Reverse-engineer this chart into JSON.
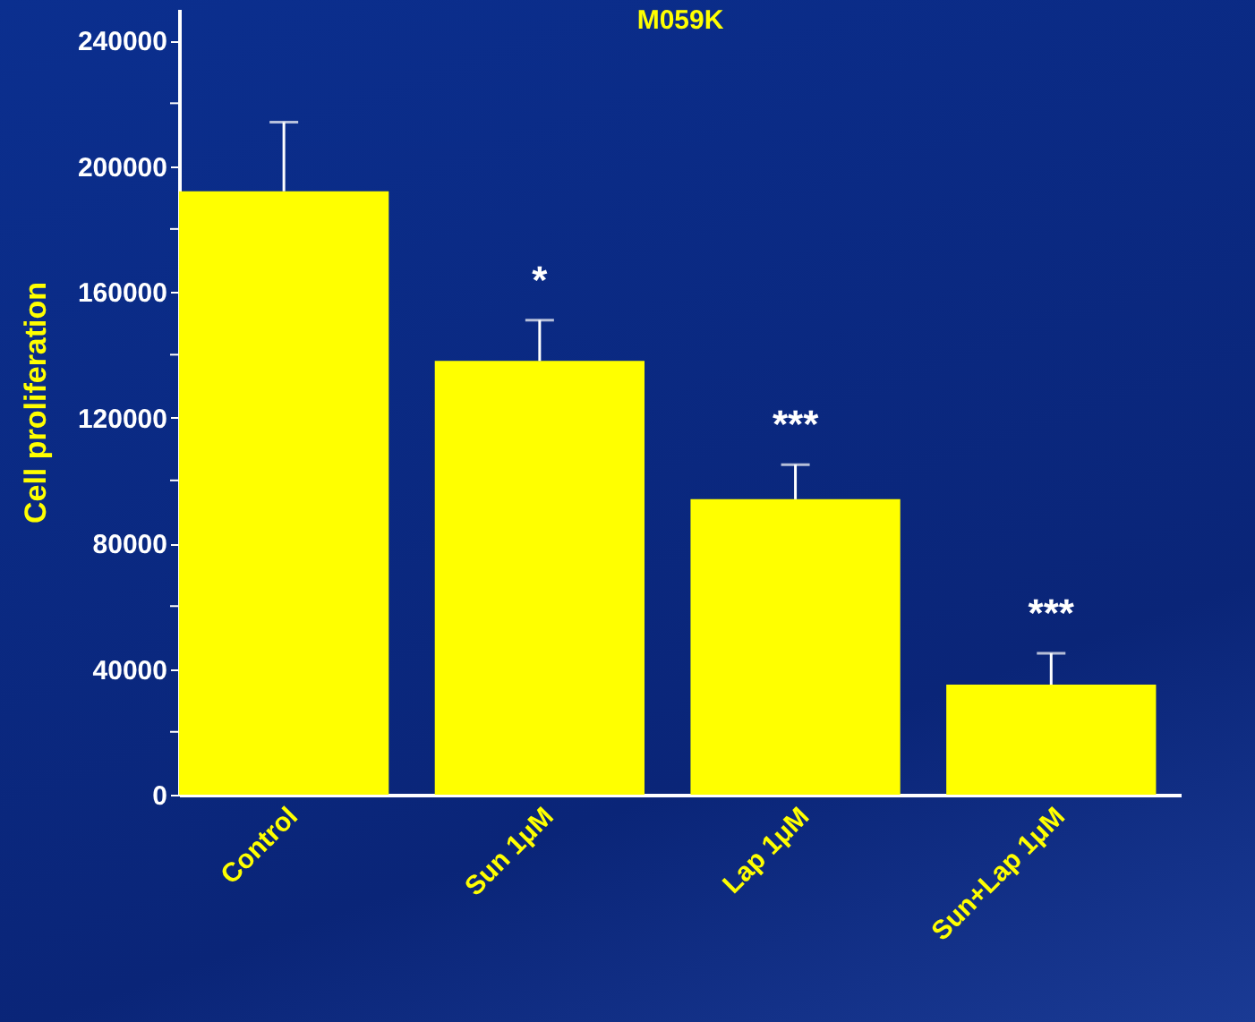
{
  "chart_data": {
    "type": "bar",
    "title": "M059K",
    "ylabel": "Cell proliferation",
    "categories": [
      "Control",
      "Sun 1μM",
      "Lap 1μM",
      "Sun+Lap 1μM"
    ],
    "values": [
      192000,
      138000,
      94000,
      35000
    ],
    "errors": [
      [
        192000,
        214000
      ],
      [
        138000,
        151000
      ],
      [
        94000,
        105000
      ],
      [
        35000,
        45000
      ]
    ],
    "color": "#ffff00",
    "ylim": [
      0,
      250000
    ],
    "yticks": [
      0,
      {
        "value": 20000,
        "label": null
      },
      40000,
      {
        "value": 60000,
        "label": null
      },
      80000,
      {
        "value": 100000,
        "label": null
      },
      120000,
      {
        "value": 140000,
        "label": null
      },
      160000,
      {
        "value": 180000,
        "label": null
      },
      200000,
      {
        "value": 220000,
        "label": null
      },
      240000
    ],
    "annotations": [
      {
        "text": "*",
        "x": "Sun 1μM",
        "y": 151000
      },
      {
        "text": "***",
        "x": "Lap 1μM",
        "y": 105000
      },
      {
        "text": "***",
        "x": "Sun+Lap 1μM",
        "y": 45000
      }
    ],
    "grid": false
  }
}
